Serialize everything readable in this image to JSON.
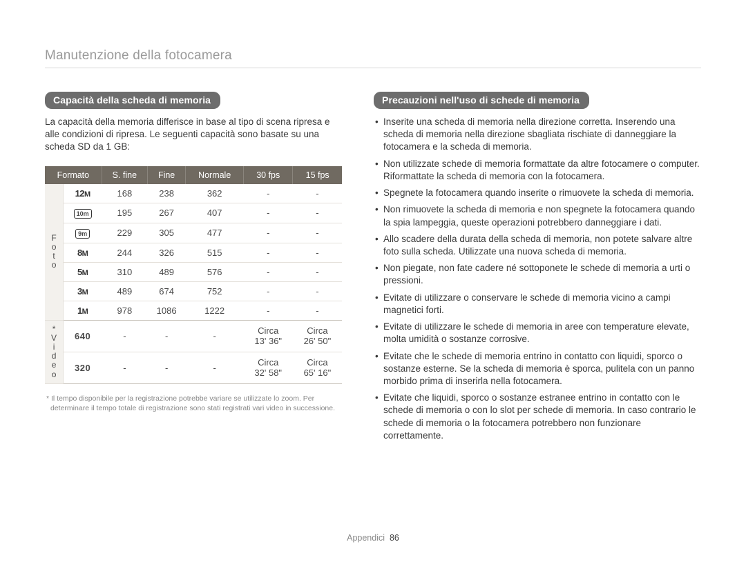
{
  "page": {
    "title": "Manutenzione della fotocamera",
    "footer_label": "Appendici",
    "footer_page": "86"
  },
  "left": {
    "pill": "Capacità della scheda di memoria",
    "intro": "La capacità della memoria differisce in base al tipo di scena ripresa e alle condizioni di ripresa. Le seguenti capacità sono basate su una scheda SD da 1 GB:",
    "headers": [
      "Formato",
      "S. fine",
      "Fine",
      "Normale",
      "30 fps",
      "15 fps"
    ],
    "side_photo": "F\no\nt\no",
    "side_video": "*\nV\ni\nd\ne\no",
    "photo_rows": [
      {
        "fmt": "12m",
        "sfine": "168",
        "fine": "238",
        "norm": "362",
        "f30": "-",
        "f15": "-"
      },
      {
        "fmt": "[10m]",
        "sfine": "195",
        "fine": "267",
        "norm": "407",
        "f30": "-",
        "f15": "-"
      },
      {
        "fmt": "[9m]",
        "sfine": "229",
        "fine": "305",
        "norm": "477",
        "f30": "-",
        "f15": "-"
      },
      {
        "fmt": "8m",
        "sfine": "244",
        "fine": "326",
        "norm": "515",
        "f30": "-",
        "f15": "-"
      },
      {
        "fmt": "5m",
        "sfine": "310",
        "fine": "489",
        "norm": "576",
        "f30": "-",
        "f15": "-"
      },
      {
        "fmt": "3m",
        "sfine": "489",
        "fine": "674",
        "norm": "752",
        "f30": "-",
        "f15": "-"
      },
      {
        "fmt": "1m",
        "sfine": "978",
        "fine": "1086",
        "norm": "1222",
        "f30": "-",
        "f15": "-"
      }
    ],
    "video_rows": [
      {
        "fmt": "640",
        "sfine": "-",
        "fine": "-",
        "norm": "-",
        "f30": "Circa\n13' 36\"",
        "f15": "Circa\n26' 50\""
      },
      {
        "fmt": "320",
        "sfine": "-",
        "fine": "-",
        "norm": "-",
        "f30": "Circa\n32' 58\"",
        "f15": "Circa\n65' 16\""
      }
    ],
    "footnote": "* Il tempo disponibile per la registrazione potrebbe variare se utilizzate lo zoom. Per determinare il tempo totale di registrazione sono stati registrati vari video in successione."
  },
  "right": {
    "pill": "Precauzioni nell'uso di schede di memoria",
    "bullets": [
      "Inserite una scheda di memoria nella direzione corretta. Inserendo una scheda di memoria nella direzione sbagliata rischiate di danneggiare la fotocamera e la scheda di memoria.",
      "Non utilizzate schede di memoria formattate da altre fotocamere o computer. Riformattate la scheda di memoria con la fotocamera.",
      "Spegnete la fotocamera quando inserite o rimuovete la scheda di memoria.",
      "Non rimuovete la scheda di memoria e non spegnete la fotocamera quando la spia lampeggia, queste operazioni potrebbero danneggiare i dati.",
      "Allo scadere della durata della scheda di memoria, non potete salvare altre foto sulla scheda. Utilizzate una nuova scheda di memoria.",
      "Non piegate, non fate cadere né sottoponete le schede di memoria a urti o pressioni.",
      "Evitate di utilizzare o conservare le schede di memoria vicino a campi magnetici forti.",
      "Evitate di utilizzare le schede di memoria in aree con temperature elevate, molta umidità o sostanze corrosive.",
      "Evitate che le schede di memoria entrino in contatto con liquidi, sporco o sostanze esterne. Se la scheda di memoria è sporca, pulitela con un panno morbido prima di inserirla nella fotocamera.",
      "Evitate che liquidi, sporco o sostanze estranee entrino in contatto con le schede di memoria o con lo slot per schede di memoria. In caso contrario le schede di memoria o la fotocamera potrebbero non funzionare correttamente."
    ]
  }
}
